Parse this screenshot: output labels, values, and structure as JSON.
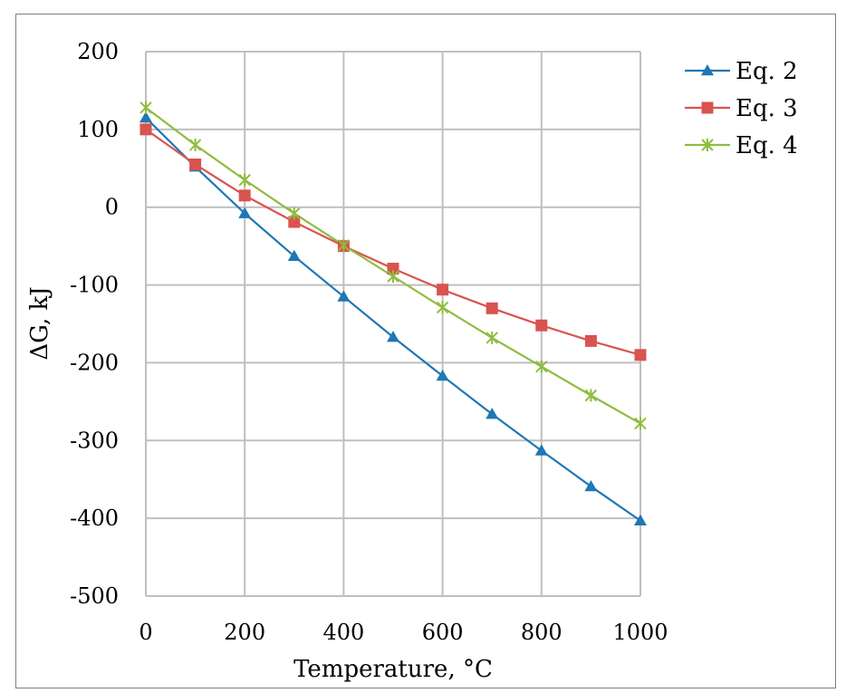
{
  "chart_data": {
    "type": "line",
    "title": "",
    "xlabel": "Temperature, °C",
    "ylabel": "ΔG, kJ",
    "xlim": [
      0,
      1000
    ],
    "ylim": [
      -500,
      200
    ],
    "x_ticks": [
      0,
      200,
      400,
      600,
      800,
      1000
    ],
    "y_ticks": [
      -500,
      -400,
      -300,
      -200,
      -100,
      0,
      100,
      200
    ],
    "grid": true,
    "legend_position": "top-right",
    "x": [
      0,
      100,
      200,
      300,
      400,
      500,
      600,
      700,
      800,
      900,
      1000
    ],
    "series": [
      {
        "name": "Eq. 2",
        "color": "#1f77b4",
        "marker": "triangle",
        "values": [
          115,
          52,
          -8,
          -63,
          -115,
          -167,
          -217,
          -266,
          -313,
          -359,
          -403
        ]
      },
      {
        "name": "Eq. 3",
        "color": "#d9534f",
        "marker": "square",
        "values": [
          100,
          55,
          15,
          -19,
          -50,
          -79,
          -106,
          -130,
          -152,
          -172,
          -190
        ]
      },
      {
        "name": "Eq. 4",
        "color": "#8fbc3f",
        "marker": "star",
        "values": [
          128,
          80,
          35,
          -8,
          -49,
          -89,
          -129,
          -168,
          -205,
          -242,
          -278
        ]
      }
    ]
  }
}
